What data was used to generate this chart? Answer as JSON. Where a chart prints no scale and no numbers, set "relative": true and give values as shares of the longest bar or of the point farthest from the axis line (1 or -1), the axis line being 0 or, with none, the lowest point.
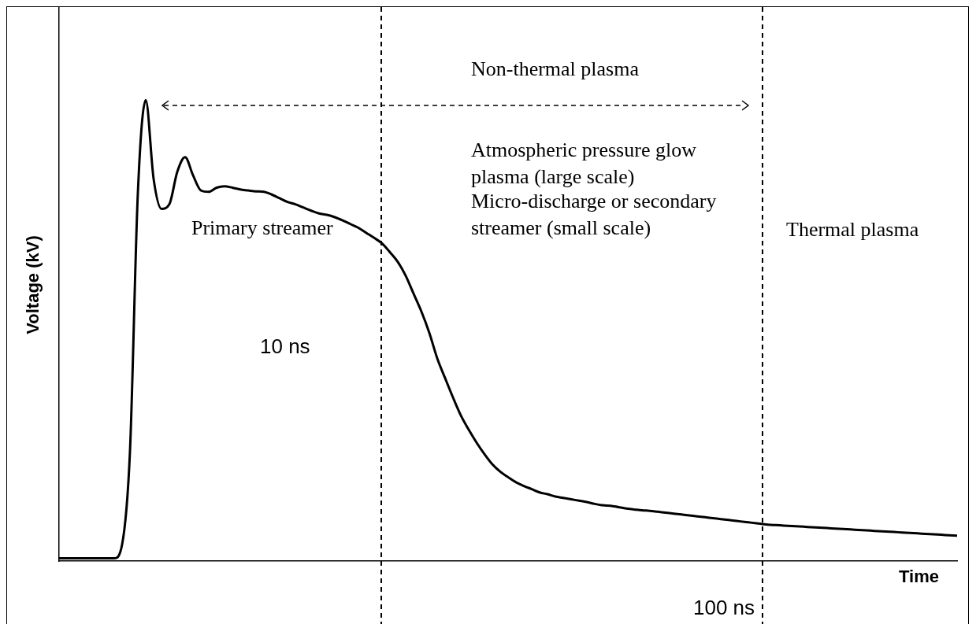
{
  "chart_data": {
    "type": "line",
    "relative": true,
    "grid": false,
    "legend": false,
    "marker": "none",
    "line_style": "solid",
    "xlabel": "Time",
    "ylabel": "Voltage (kV)",
    "categories": [
      null,
      null,
      null,
      null,
      null,
      null,
      null,
      null,
      null,
      null,
      null,
      null,
      null,
      null,
      null,
      null,
      null,
      null,
      null,
      null,
      null,
      null,
      null,
      null,
      null,
      null,
      null,
      null,
      null,
      null,
      null,
      null,
      null,
      null,
      null,
      null,
      null,
      null,
      null,
      null,
      null,
      null,
      null,
      null,
      null,
      null,
      null,
      null,
      null,
      null,
      null,
      null,
      null,
      null,
      null,
      null,
      null,
      null,
      null,
      null,
      null,
      null,
      null,
      null,
      null,
      null,
      null,
      null,
      null,
      null,
      null,
      null,
      null,
      null,
      null,
      null,
      null,
      null,
      null,
      null,
      null,
      null,
      null,
      null,
      null,
      null,
      null,
      null,
      null,
      null,
      null,
      null,
      null,
      null,
      null,
      null,
      null,
      null,
      null,
      null,
      null,
      null,
      null,
      null,
      null,
      null,
      null,
      null,
      null,
      null,
      null,
      null,
      null,
      null,
      null
    ],
    "series": [
      {
        "color": "#000000",
        "values": [
          0.006,
          0.006,
          0.006,
          0.006,
          0.006,
          0.006,
          0.006,
          0.006,
          0.036,
          0.238,
          0.798,
          1,
          0.829,
          0.764,
          0.774,
          0.844,
          0.876,
          0.837,
          0.804,
          0.801,
          0.81,
          0.813,
          0.81,
          0.806,
          0.804,
          0.802,
          0.801,
          0.795,
          0.787,
          0.779,
          0.774,
          0.767,
          0.76,
          0.754,
          0.751,
          0.746,
          0.739,
          0.731,
          0.723,
          0.712,
          0.701,
          0.689,
          0.67,
          0.649,
          0.619,
          0.58,
          0.541,
          0.495,
          0.44,
          0.397,
          0.355,
          0.316,
          0.285,
          0.257,
          0.232,
          0.21,
          0.194,
          0.182,
          0.171,
          0.163,
          0.156,
          0.149,
          0.145,
          0.14,
          0.137,
          0.134,
          0.131,
          0.128,
          0.124,
          0.121,
          0.12,
          0.117,
          0.114,
          0.112,
          0.11,
          0.109,
          0.107,
          0.105,
          0.103,
          0.101,
          0.099,
          0.097,
          0.095,
          0.093,
          0.091,
          0.089,
          0.087,
          0.085,
          0.083,
          0.081,
          0.079,
          0.078,
          0.077,
          0.076,
          0.075,
          0.074,
          0.073,
          0.072,
          0.071,
          0.07,
          0.069,
          0.068,
          0.067,
          0.066,
          0.065,
          0.064,
          0.063,
          0.062,
          0.061,
          0.06,
          0.059,
          0.058,
          0.057,
          0.056,
          0.055
        ]
      }
    ],
    "annotations": [
      "Non-thermal plasma",
      "Atmospheric pressure glow plasma (large scale)",
      "Micro-discharge or secondary streamer (small scale)",
      "Primary streamer",
      "Thermal plasma",
      "10 ns",
      "100 ns"
    ]
  }
}
